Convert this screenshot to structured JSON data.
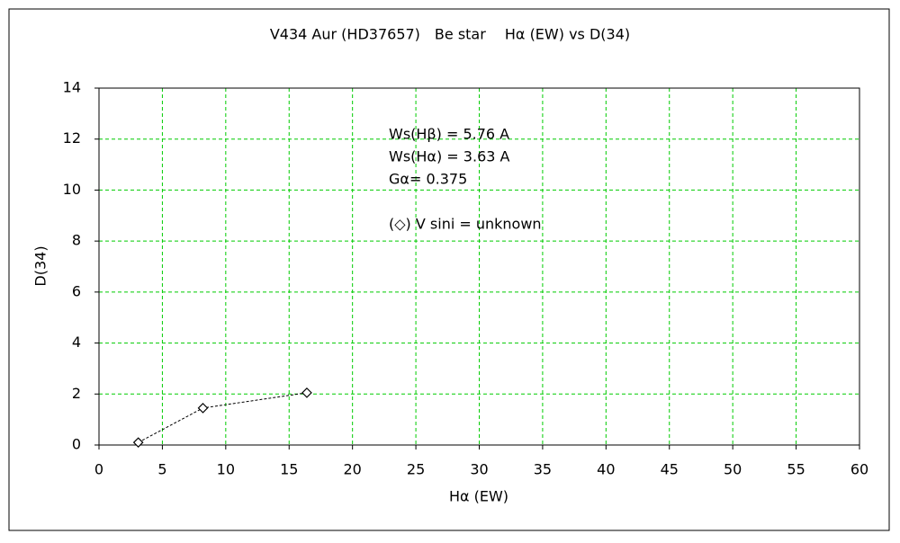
{
  "chart_data": {
    "type": "scatter",
    "title": "V434 Aur (HD37657)　Be star　 Hα (EW) vs D(34)",
    "x_label": "Hα (EW)",
    "y_label": "D(34)",
    "x": [
      3.1,
      8.2,
      16.4
    ],
    "values": [
      0.1,
      1.45,
      2.05
    ],
    "color": "#000000",
    "line_style": "dashed",
    "marker": "diamond",
    "xlim": [
      0,
      60
    ],
    "xticks": [
      0,
      5,
      10,
      15,
      20,
      25,
      30,
      35,
      40,
      45,
      50,
      55,
      60
    ],
    "ylim": [
      0,
      14
    ],
    "yticks": [
      0,
      2,
      4,
      6,
      8,
      10,
      12,
      14
    ],
    "grid": true,
    "grid_color": "#00cc00",
    "annotations": [
      "Ws(Hβ) = 5.76 A",
      "Ws(Hα) = 3.63 A",
      "Gα= 0.375",
      "(◇) V sini = unknown"
    ]
  }
}
